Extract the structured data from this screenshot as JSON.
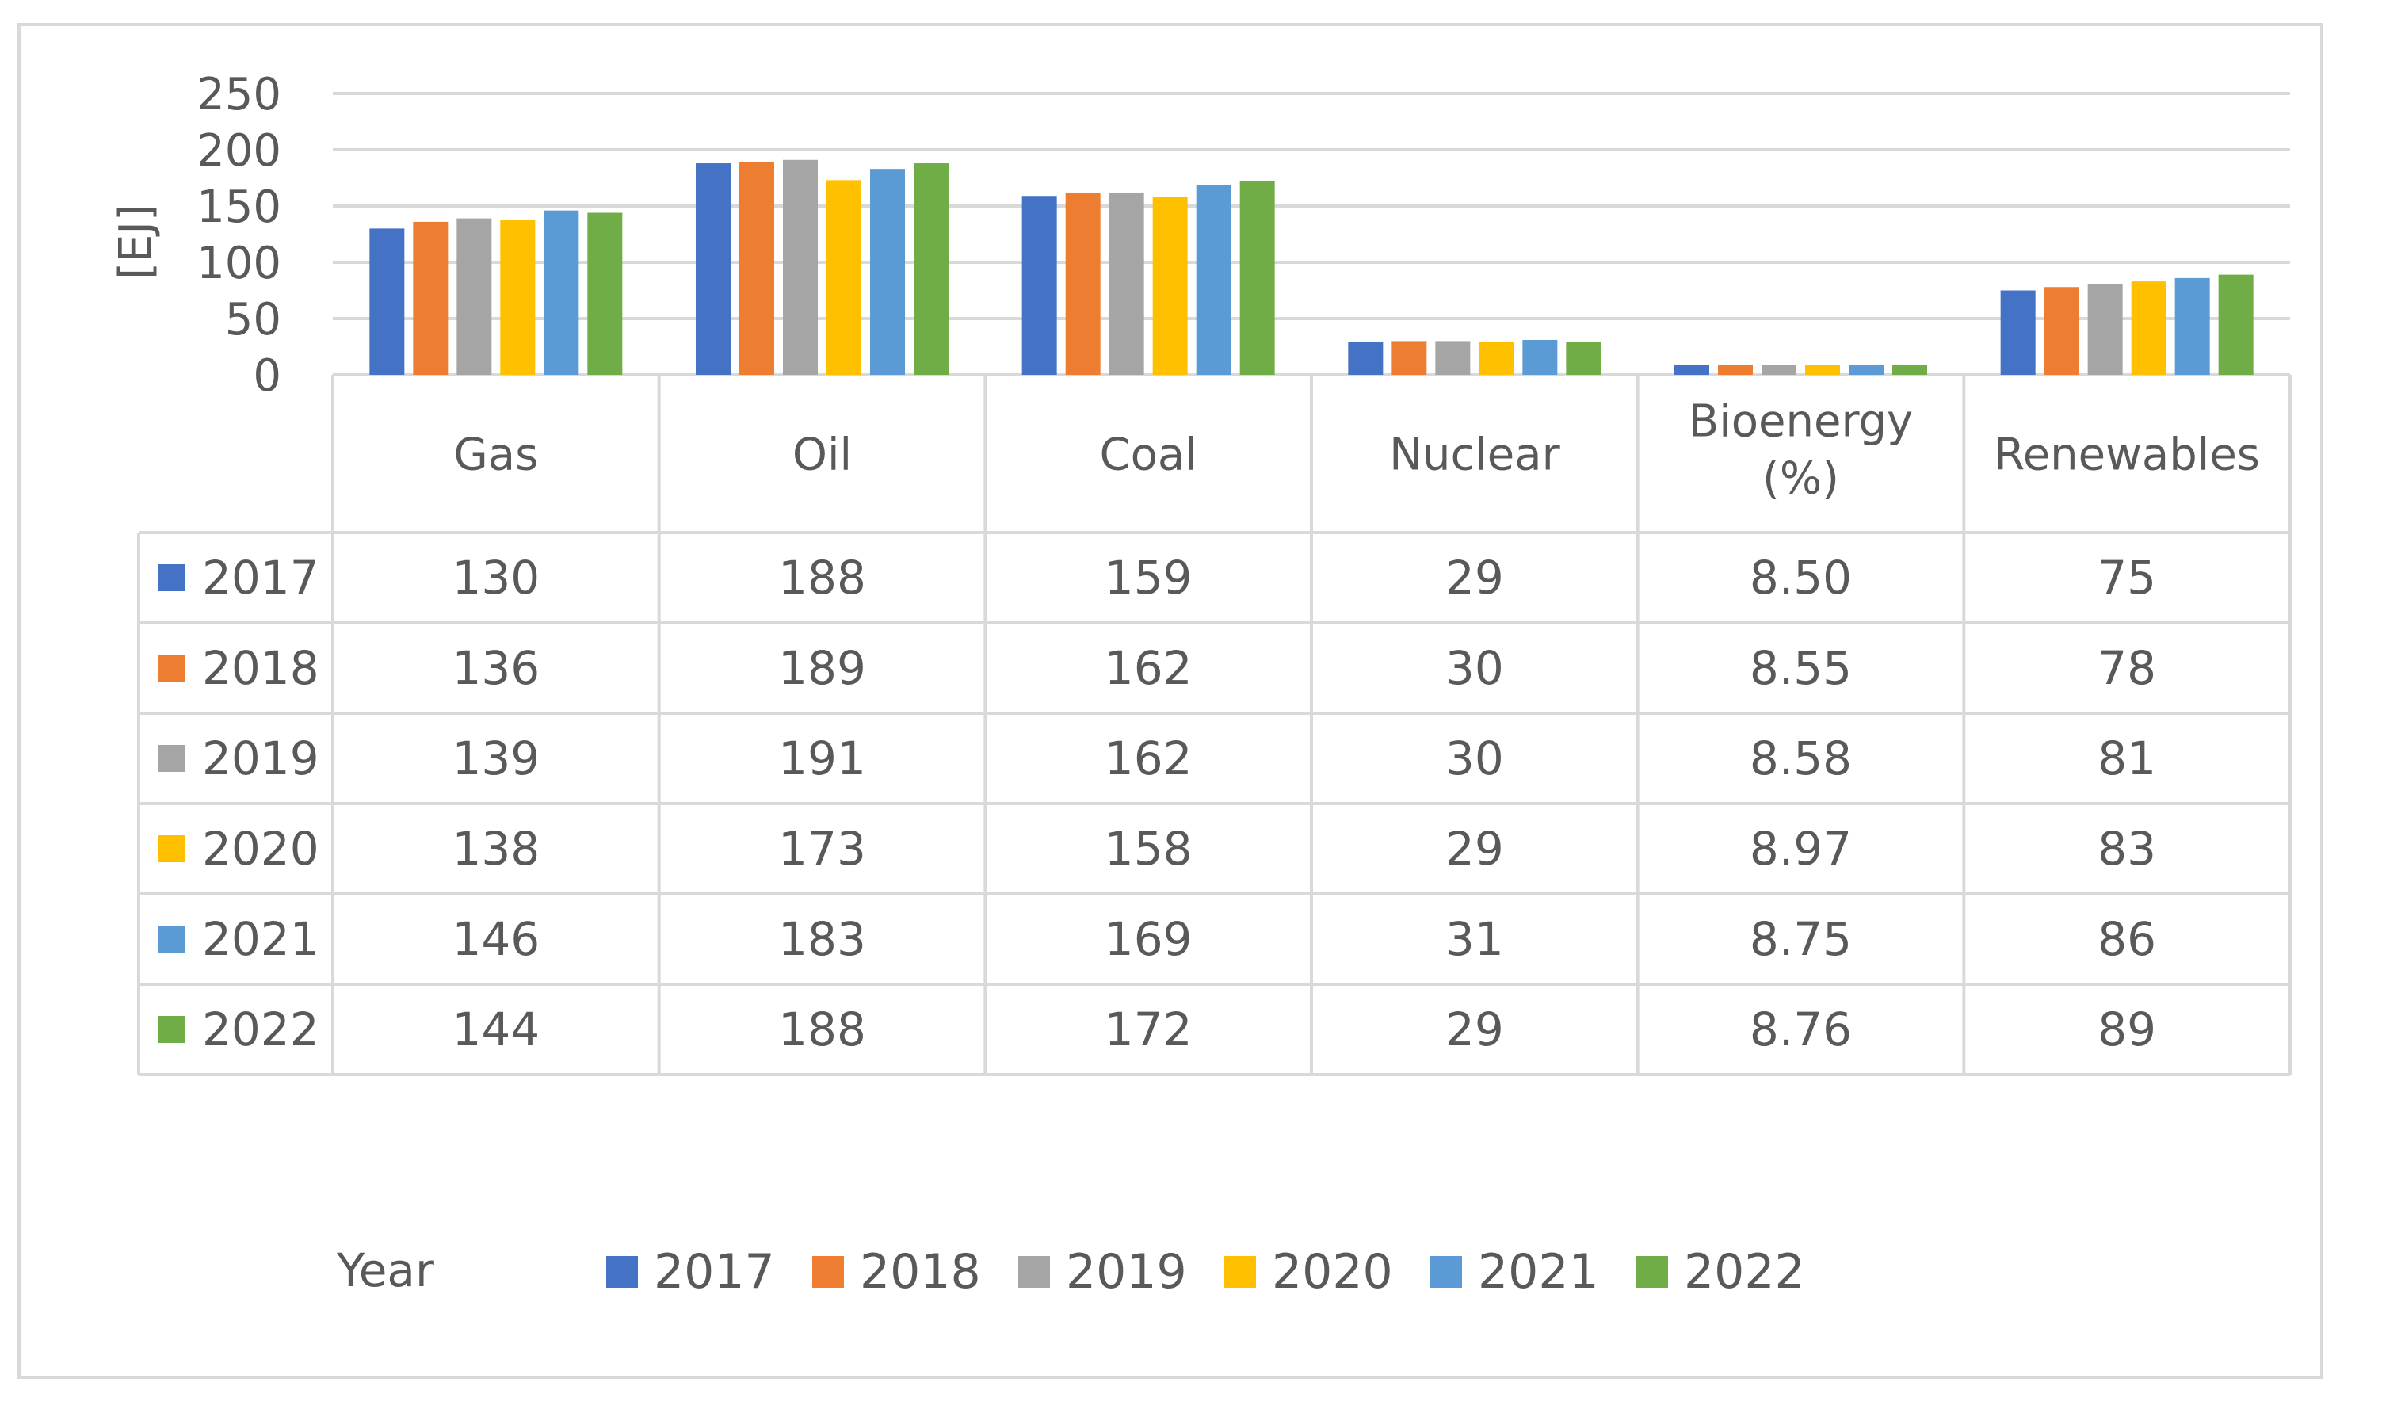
{
  "chart_data": {
    "type": "bar",
    "title": "",
    "ylabel": "[EJ]",
    "xlabel": "Year",
    "ylim": [
      0,
      250
    ],
    "yticks": [
      0,
      50,
      100,
      150,
      200,
      250
    ],
    "grid": true,
    "legend_position": "bottom",
    "data_table": true,
    "categories": [
      "Gas",
      "Oil",
      "Coal",
      "Nuclear",
      "Bioenergy (%)",
      "Renewables"
    ],
    "series": [
      {
        "name": "2017",
        "color": "#4472C4",
        "values": [
          130,
          188,
          159,
          29,
          8.5,
          75
        ],
        "labels": [
          "130",
          "188",
          "159",
          "29",
          "8.50",
          "75"
        ]
      },
      {
        "name": "2018",
        "color": "#ED7D31",
        "values": [
          136,
          189,
          162,
          30,
          8.55,
          78
        ],
        "labels": [
          "136",
          "189",
          "162",
          "30",
          "8.55",
          "78"
        ]
      },
      {
        "name": "2019",
        "color": "#A5A5A5",
        "values": [
          139,
          191,
          162,
          30,
          8.58,
          81
        ],
        "labels": [
          "139",
          "191",
          "162",
          "30",
          "8.58",
          "81"
        ]
      },
      {
        "name": "2020",
        "color": "#FFC000",
        "values": [
          138,
          173,
          158,
          29,
          8.97,
          83
        ],
        "labels": [
          "138",
          "173",
          "158",
          "29",
          "8.97",
          "83"
        ]
      },
      {
        "name": "2021",
        "color": "#5B9BD5",
        "values": [
          146,
          183,
          169,
          31,
          8.75,
          86
        ],
        "labels": [
          "146",
          "183",
          "169",
          "31",
          "8.75",
          "86"
        ]
      },
      {
        "name": "2022",
        "color": "#70AD47",
        "values": [
          144,
          188,
          172,
          29,
          8.76,
          89
        ],
        "labels": [
          "144",
          "188",
          "172",
          "29",
          "8.76",
          "89"
        ]
      }
    ]
  }
}
